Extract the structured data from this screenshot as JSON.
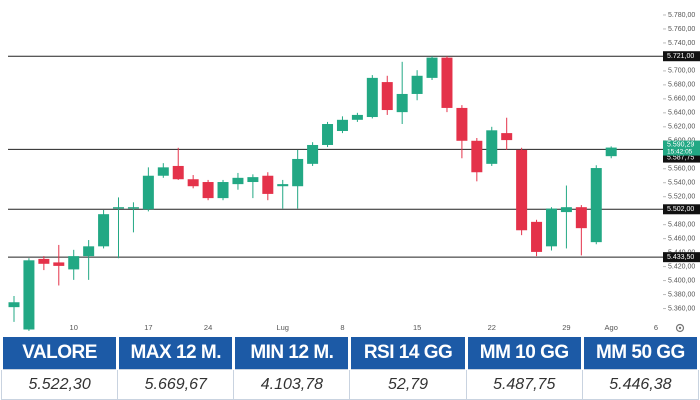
{
  "chart_data": {
    "type": "candlestick",
    "categories": [
      null,
      null,
      null,
      null,
      "10",
      null,
      null,
      null,
      null,
      "17",
      null,
      null,
      null,
      "24",
      null,
      null,
      null,
      null,
      "Lug",
      null,
      null,
      null,
      "8",
      null,
      null,
      null,
      null,
      "15",
      null,
      null,
      null,
      null,
      "22",
      null,
      null,
      null,
      null,
      "29",
      null,
      null,
      "Ago",
      null,
      null,
      "6"
    ],
    "open": [
      5362,
      5330,
      5431,
      5426,
      5416,
      5435,
      5449,
      5503,
      5503,
      5502,
      5550,
      5564,
      5545,
      5541,
      5518,
      5538,
      5541,
      5550,
      5535,
      5535,
      5567,
      5594,
      5614,
      5630,
      5634,
      5684,
      5641,
      5667,
      5690,
      5719,
      5647,
      5600,
      5567,
      5611,
      5587,
      5484,
      5449,
      5498,
      5505,
      5455,
      5578,
      null,
      null,
      null
    ],
    "high": [
      5378,
      5432,
      5435,
      5451,
      5444,
      5458,
      5501,
      5519,
      5512,
      5562,
      5568,
      5590,
      5551,
      5544,
      5544,
      5554,
      5552,
      5555,
      5544,
      5587,
      5598,
      5627,
      5635,
      5640,
      5694,
      5693,
      5713,
      5701,
      5721,
      5721,
      5651,
      5604,
      5620,
      5633,
      5590,
      5487,
      5505,
      5536,
      5508,
      5565,
      5592,
      null,
      null,
      null
    ],
    "low": [
      5341,
      5328,
      5415,
      5393,
      5401,
      5401,
      5446,
      5432,
      5469,
      5499,
      5547,
      5544,
      5532,
      5515,
      5515,
      5530,
      5518,
      5515,
      5503,
      5503,
      5564,
      5591,
      5611,
      5627,
      5632,
      5637,
      5624,
      5658,
      5687,
      5641,
      5575,
      5542,
      5564,
      5587,
      5465,
      5435,
      5443,
      5446,
      5436,
      5452,
      5575,
      null,
      null,
      null
    ],
    "close": [
      5369,
      5429,
      5424,
      5421,
      5435,
      5449,
      5495,
      5505,
      5505,
      5550,
      5562,
      5545,
      5535,
      5518,
      5541,
      5547,
      5548,
      5524,
      5538,
      5574,
      5594,
      5624,
      5630,
      5637,
      5690,
      5644,
      5667,
      5693,
      5719,
      5647,
      5600,
      5555,
      5615,
      5601,
      5472,
      5441,
      5503,
      5505,
      5475,
      5561,
      5590.29,
      null,
      null,
      null
    ],
    "up_color": "#22a884",
    "down_color": "#e4324a",
    "ylim": [
      5325,
      5800
    ],
    "yticks": [
      {
        "value": 5780,
        "label": "5.780,00"
      },
      {
        "value": 5760,
        "label": "5.760,00"
      },
      {
        "value": 5740,
        "label": "5.740,00"
      },
      {
        "value": 5700,
        "label": "5.700,00"
      },
      {
        "value": 5680,
        "label": "5.680,00"
      },
      {
        "value": 5660,
        "label": "5.660,00"
      },
      {
        "value": 5640,
        "label": "5.640,00"
      },
      {
        "value": 5620,
        "label": "5.620,00"
      },
      {
        "value": 5600,
        "label": "5.600,00"
      },
      {
        "value": 5560,
        "label": "5.560,00"
      },
      {
        "value": 5540,
        "label": "5.540,00"
      },
      {
        "value": 5520,
        "label": "5.520,00"
      },
      {
        "value": 5480,
        "label": "5.480,00"
      },
      {
        "value": 5460,
        "label": "5.460,00"
      },
      {
        "value": 5440,
        "label": "5.440,00"
      },
      {
        "value": 5420,
        "label": "5.420,00"
      },
      {
        "value": 5400,
        "label": "5.400,00"
      },
      {
        "value": 5380,
        "label": "5.380,00"
      },
      {
        "value": 5360,
        "label": "5.360,00"
      }
    ],
    "levels": [
      {
        "value": 5721,
        "label": "5.721,00"
      },
      {
        "value": 5587.75,
        "label": "5.587,75"
      },
      {
        "value": 5502,
        "label": "5.502,00"
      },
      {
        "value": 5433.5,
        "label": "5.433,50"
      }
    ],
    "current_price": {
      "value": 5590.29,
      "label": "5.590,29"
    },
    "countdown": "15:42:05"
  },
  "table": {
    "headers": [
      "VALORE",
      "MAX 12 M.",
      "MIN 12 M.",
      "RSI 14 GG",
      "MM 10 GG",
      "MM 50 GG"
    ],
    "row": [
      "5.522,30",
      "5.669,67",
      "4.103,78",
      "52,79",
      "5.487,75",
      "5.446,38"
    ]
  }
}
